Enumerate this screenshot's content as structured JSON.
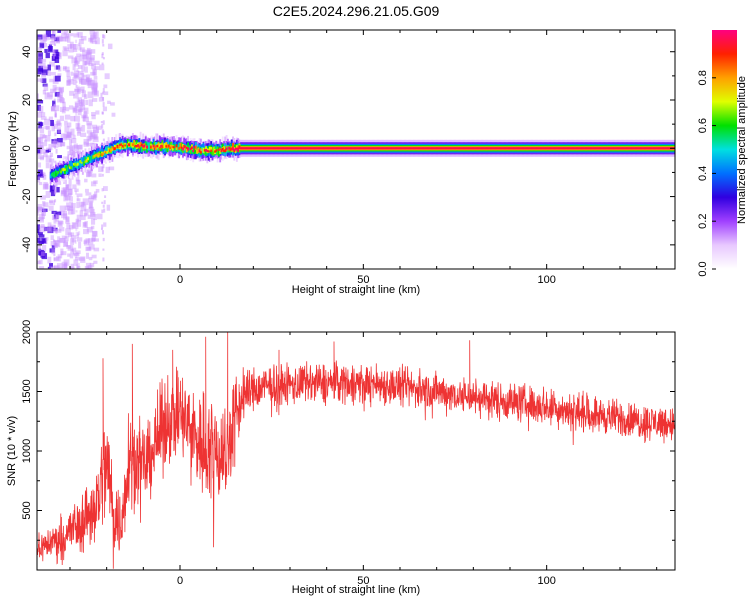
{
  "page_title": "C2E5.2024.296.21.05.G09",
  "chart_data": [
    {
      "type": "heatmap",
      "title": "",
      "xlabel": "Height of straight line (km)",
      "ylabel": "Frequency (Hz)",
      "xlim": [
        -39,
        135
      ],
      "ylim": [
        -50,
        49
      ],
      "xticks": [
        0,
        50,
        100
      ],
      "yticks": [
        -40,
        -20,
        0,
        20,
        40
      ],
      "colorbar": {
        "label": "Normalized spectral amplitude",
        "range": [
          0,
          1
        ],
        "ticks": [
          0.0,
          0.2,
          0.4,
          0.6,
          0.8
        ],
        "colormap": [
          "#ffffff",
          "#e8c8ff",
          "#a040ff",
          "#3000e0",
          "#0070ff",
          "#00e0e0",
          "#00e000",
          "#e0ff00",
          "#ffa000",
          "#ff2000",
          "#ff0080"
        ]
      },
      "ridge": {
        "x": [
          -35,
          -32,
          -29,
          -26,
          -23,
          -20,
          -17,
          -14,
          -11,
          -8,
          -5,
          -2,
          0,
          5,
          10,
          13,
          15,
          30,
          60,
          96,
          135
        ],
        "frequency": [
          -11,
          -9,
          -7,
          -5,
          -3,
          -1,
          1,
          1.5,
          1,
          0.5,
          1,
          0.5,
          0.5,
          -1,
          -1,
          0,
          0,
          0,
          0,
          0,
          0
        ],
        "amplitude": [
          0.45,
          0.5,
          0.55,
          0.6,
          0.65,
          0.7,
          0.8,
          0.85,
          0.9,
          0.9,
          0.95,
          0.9,
          0.95,
          0.9,
          0.9,
          0.95,
          1,
          1,
          1,
          1,
          1
        ]
      },
      "colors": {
        "dense_low": "#4000e0",
        "scatter_low": "#c890ff"
      }
    },
    {
      "type": "line",
      "title": "",
      "xlabel": "Height of straight line (km)",
      "ylabel": "SNR (10 * v/v)",
      "xlim": [
        -39,
        135
      ],
      "ylim": [
        0,
        2000
      ],
      "xticks": [
        0,
        50,
        100
      ],
      "yticks": [
        500,
        1000,
        1500,
        2000
      ],
      "series": [
        {
          "color": "#ee3333",
          "envelope": {
            "x": [
              -39,
              -32,
              -27,
              -23,
              -20,
              -18,
              -16,
              -14,
              -12,
              -9,
              -6,
              -3,
              0,
              5,
              10,
              13,
              15,
              18,
              25,
              35,
              45,
              55,
              65,
              75,
              85,
              95,
              105,
              115,
              125,
              135
            ],
            "mean": [
              180,
              280,
              400,
              550,
              900,
              500,
              350,
              1000,
              900,
              900,
              1100,
              1300,
              1300,
              1100,
              1000,
              1000,
              1300,
              1500,
              1550,
              1560,
              1580,
              1560,
              1520,
              1480,
              1430,
              1400,
              1350,
              1300,
              1250,
              1230
            ],
            "spread": [
              90,
              160,
              220,
              280,
              420,
              300,
              250,
              380,
              300,
              260,
              320,
              330,
              330,
              380,
              380,
              420,
              300,
              170,
              150,
              150,
              150,
              145,
              140,
              140,
              140,
              135,
              135,
              130,
              130,
              130
            ]
          },
          "peaks": [
            [
              -21,
              1780
            ],
            [
              -13,
              1900
            ],
            [
              -2,
              1850
            ],
            [
              7,
              1960
            ],
            [
              13,
              2000
            ],
            [
              27,
              1850
            ],
            [
              42,
              1920
            ],
            [
              79,
              1930
            ]
          ]
        }
      ]
    }
  ]
}
